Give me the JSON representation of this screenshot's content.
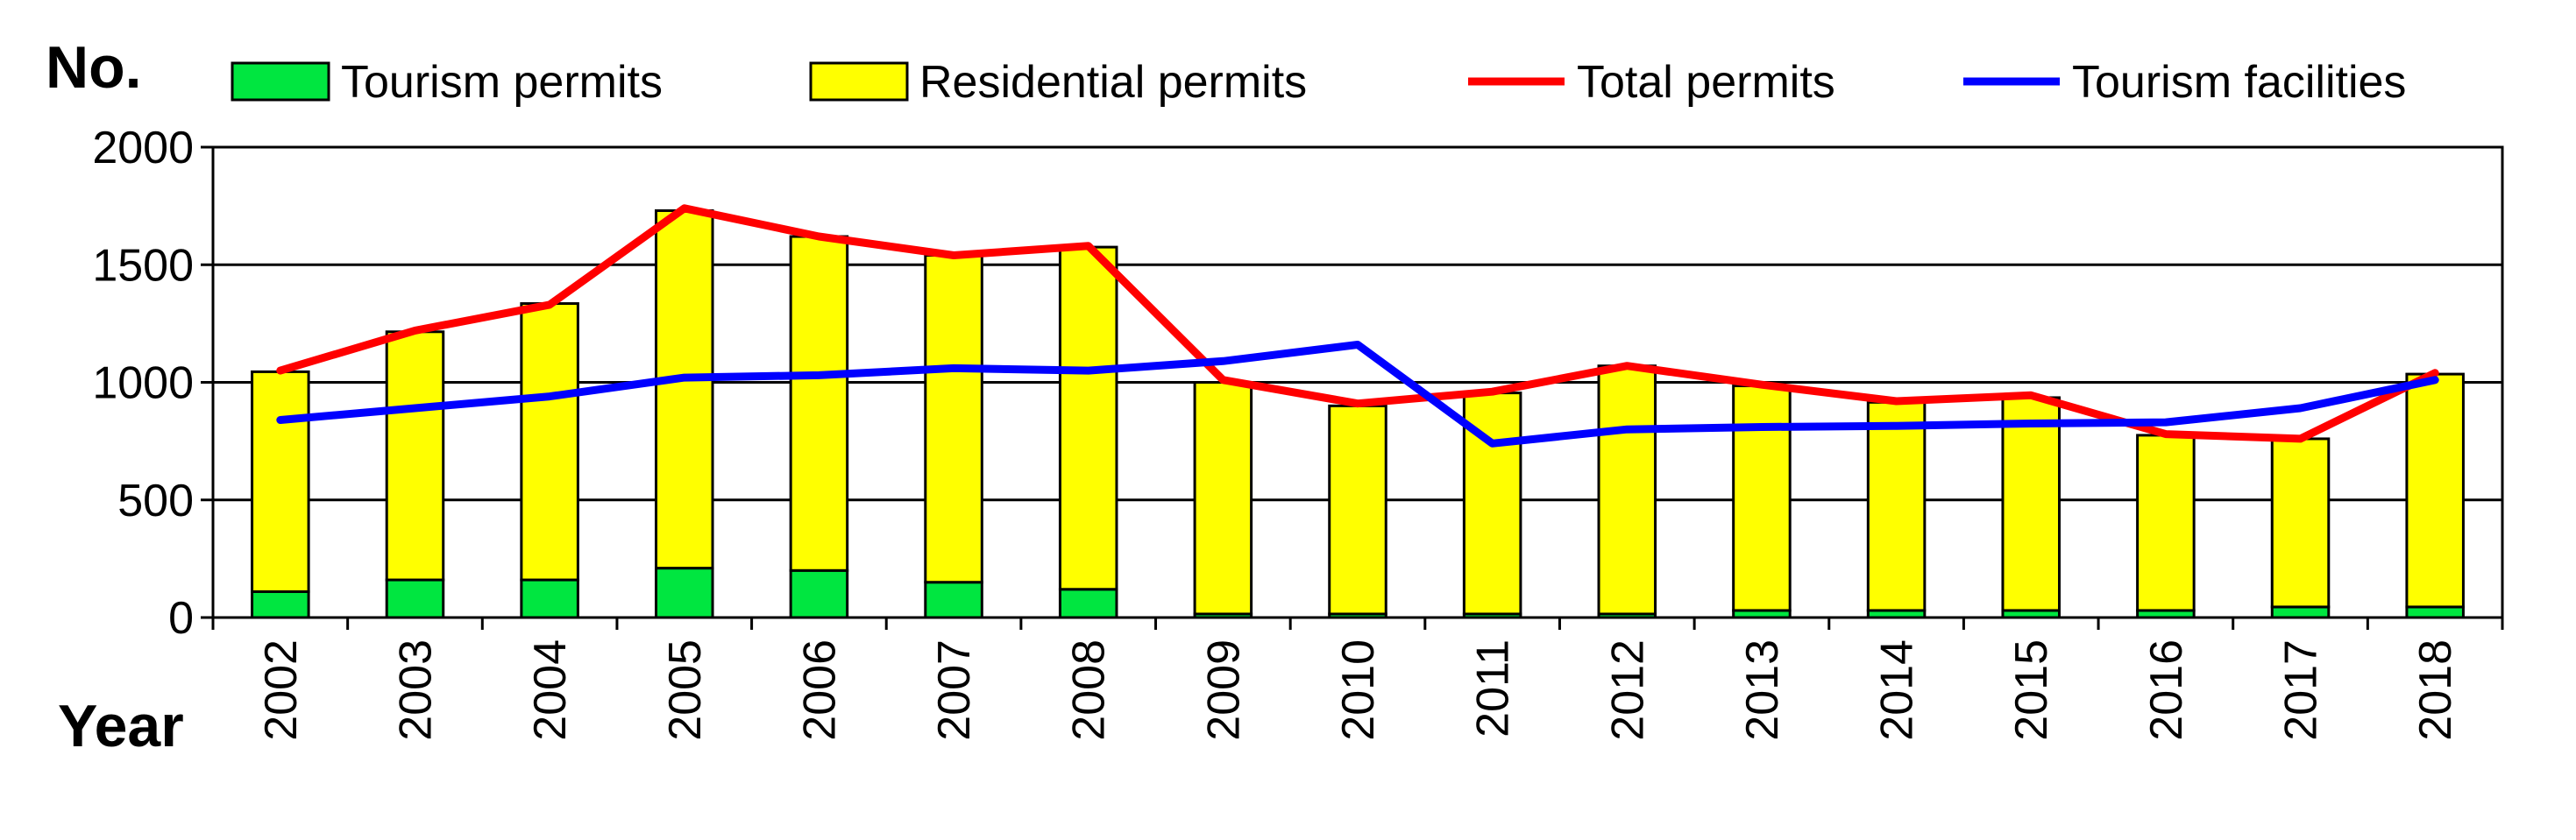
{
  "chart_data": {
    "type": "bar",
    "ylabel": "No.",
    "xlabel": "Year",
    "ylim": [
      0,
      2000
    ],
    "yticks": [
      "0",
      "500",
      "1000",
      "1500",
      "2000"
    ],
    "grid": true,
    "legend_position": "top",
    "categories": [
      "2002",
      "2003",
      "2004",
      "2005",
      "2006",
      "2007",
      "2008",
      "2009",
      "2010",
      "2011",
      "2012",
      "2013",
      "2014",
      "2015",
      "2016",
      "2017",
      "2018"
    ],
    "series": [
      {
        "name": "Tourism permits",
        "kind": "stacked-bar",
        "color": "#00e640",
        "values": [
          110,
          160,
          160,
          210,
          200,
          150,
          120,
          15,
          15,
          15,
          15,
          30,
          30,
          30,
          30,
          45,
          45
        ]
      },
      {
        "name": "Residential permits",
        "kind": "stacked-bar",
        "color": "#ffff00",
        "values": [
          935,
          1055,
          1175,
          1520,
          1420,
          1390,
          1455,
          985,
          885,
          940,
          1055,
          955,
          885,
          905,
          745,
          715,
          990
        ]
      },
      {
        "name": "Total permits",
        "kind": "line",
        "color": "#ff0000",
        "values": [
          1050,
          1220,
          1330,
          1740,
          1620,
          1540,
          1580,
          1010,
          910,
          960,
          1070,
          990,
          920,
          945,
          780,
          760,
          1040
        ]
      },
      {
        "name": "Tourism facilities",
        "kind": "line",
        "color": "#0000ff",
        "values": [
          840,
          890,
          940,
          1020,
          1030,
          1060,
          1050,
          1090,
          1160,
          740,
          800,
          810,
          815,
          825,
          830,
          890,
          1010
        ]
      }
    ]
  }
}
